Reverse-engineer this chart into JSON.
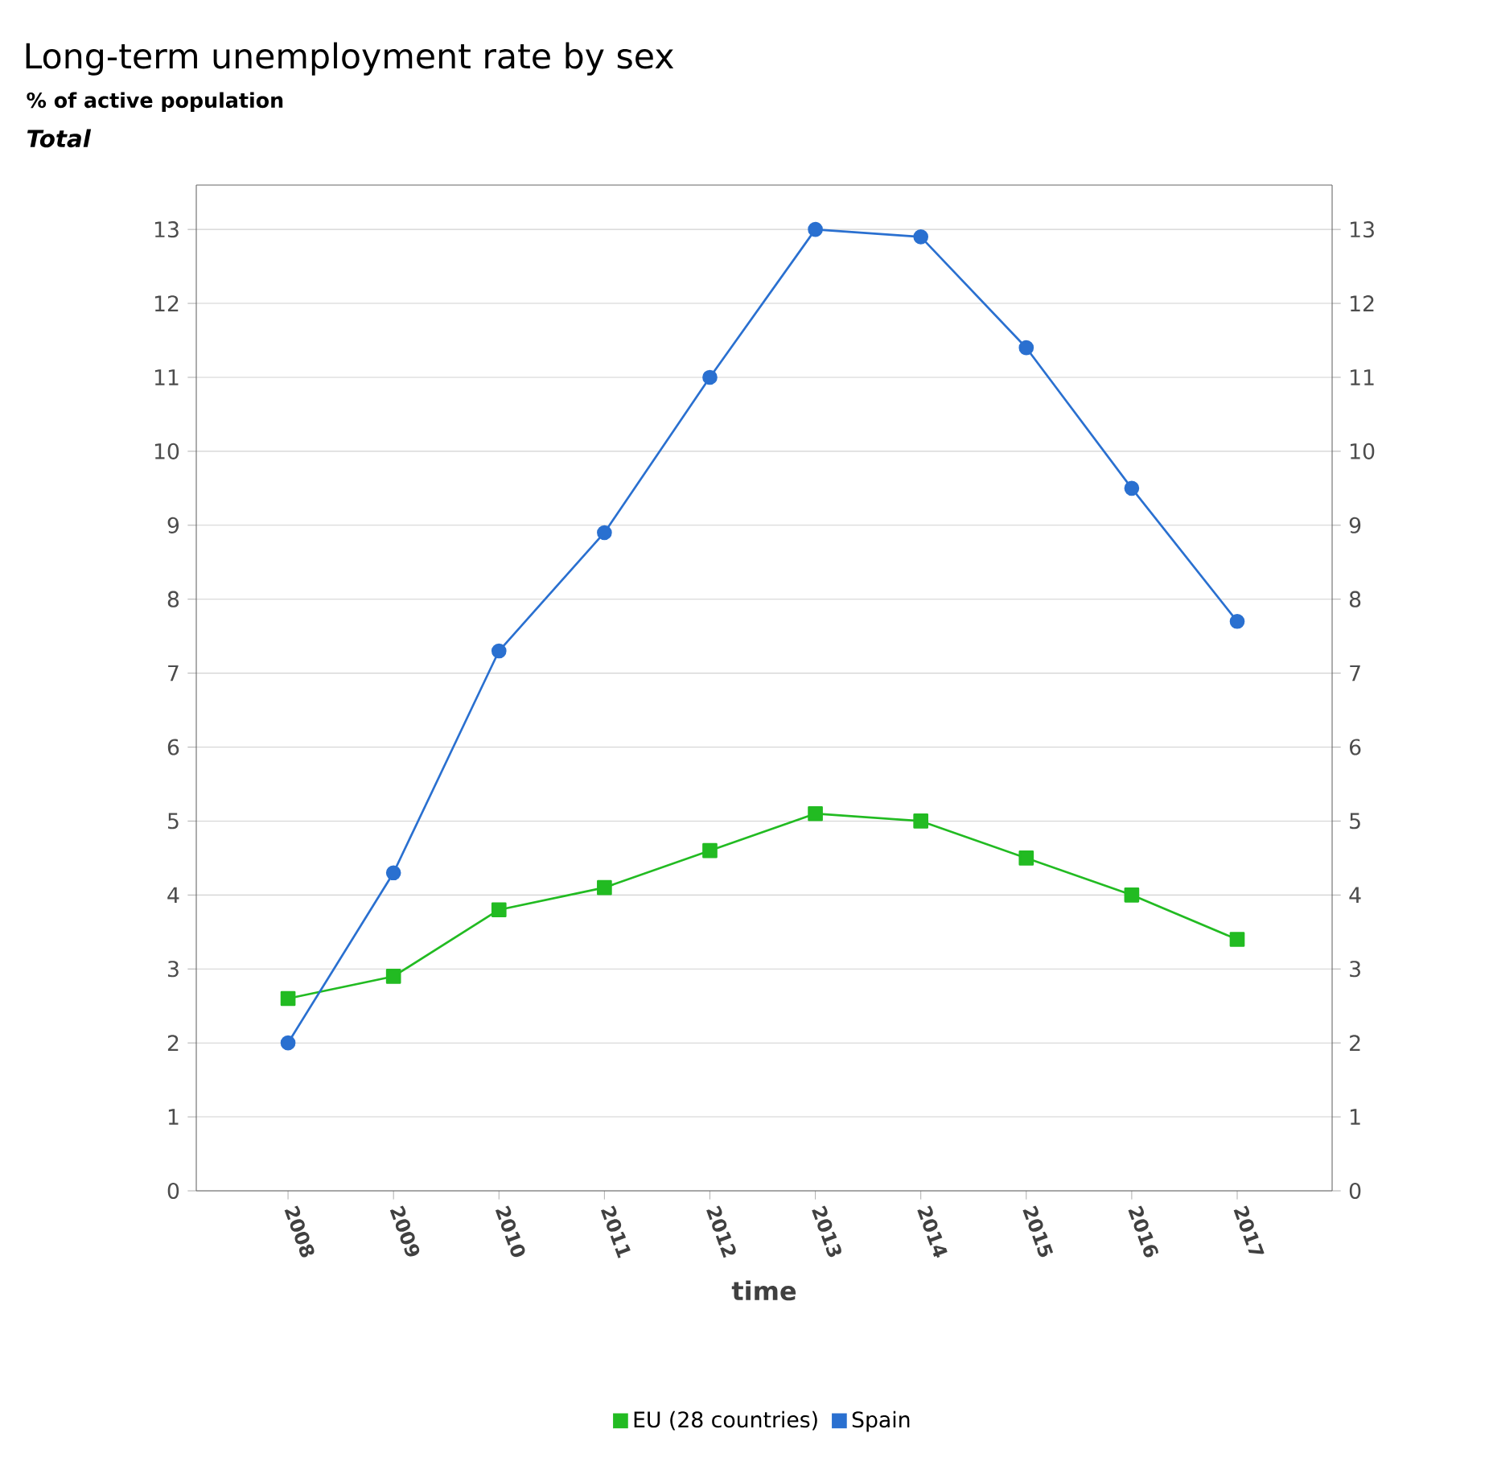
{
  "chart_data": {
    "type": "line",
    "title": "Long-term unemployment rate by sex",
    "subtitle": "% of active population",
    "annotations": [
      "Total"
    ],
    "xlabel": "time",
    "categories": [
      "2008",
      "2009",
      "2010",
      "2011",
      "2012",
      "2013",
      "2014",
      "2015",
      "2016",
      "2017"
    ],
    "series": [
      {
        "name": "EU (28 countries)",
        "color": "#22bb22",
        "marker": "square",
        "values": [
          2.6,
          2.9,
          3.8,
          4.1,
          4.6,
          5.1,
          5.0,
          4.5,
          4.0,
          3.4
        ]
      },
      {
        "name": "Spain",
        "color": "#2a70d0",
        "marker": "circle",
        "values": [
          2.0,
          4.3,
          7.3,
          8.9,
          11.0,
          13.0,
          12.9,
          11.4,
          9.5,
          7.7
        ]
      }
    ],
    "ylim": [
      0,
      13.6
    ],
    "yticks": [
      0,
      1,
      2,
      3,
      4,
      5,
      6,
      7,
      8,
      9,
      10,
      11,
      12,
      13
    ],
    "y2lim": [
      0,
      13.6
    ],
    "y2ticks": [
      0,
      1,
      2,
      3,
      4,
      5,
      6,
      7,
      8,
      9,
      10,
      11,
      12,
      13
    ],
    "grid": "y",
    "legend": "bottom",
    "line_style": "solid"
  }
}
